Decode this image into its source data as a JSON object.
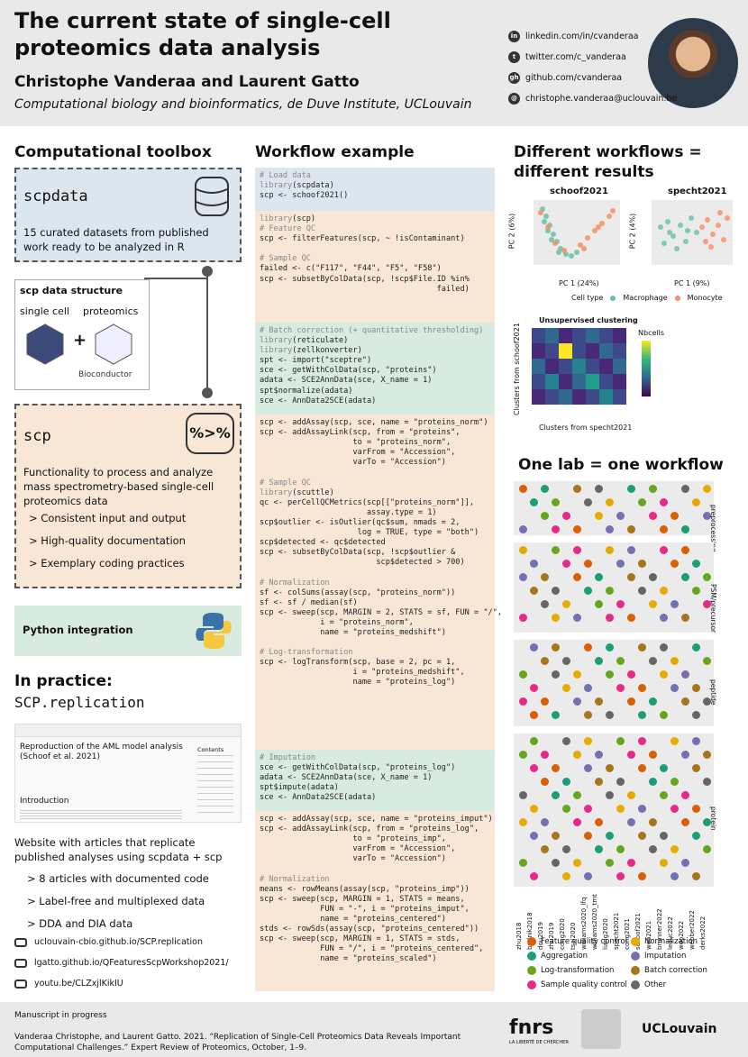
{
  "header": {
    "title": "The current state of single-cell proteomics data analysis",
    "authors": "Christophe Vanderaa and Laurent Gatto",
    "affiliation": "Computational biology and bioinformatics, de Duve Institute, UCLouvain",
    "contacts": [
      {
        "icon": "linkedin-icon",
        "glyph": "in",
        "text": "linkedin.com/in/cvanderaa"
      },
      {
        "icon": "twitter-icon",
        "glyph": "t",
        "text": "twitter.com/c_vanderaa"
      },
      {
        "icon": "github-icon",
        "glyph": "gh",
        "text": "github.com/cvanderaa"
      },
      {
        "icon": "email-icon",
        "glyph": "@",
        "text": "christophe.vanderaa@uclouvain.be"
      }
    ]
  },
  "toolbox": {
    "heading": "Computational toolbox",
    "scpdata_title": "scpdata",
    "scpdata_desc": "15 curated datasets from published work ready to be analyzed in R",
    "struct_title": "scp data structure",
    "struct_single": "single cell",
    "struct_prot": "proteomics",
    "plus": "+",
    "bioc": "Bioconductor",
    "scp_title": "scp",
    "scp_logo": "%>%",
    "scp_desc": "Functionality to process and analyze mass spectrometry-based single-cell proteomics data",
    "bullets": [
      "Consistent input and output",
      "High-quality documentation",
      "Exemplary coding practices"
    ],
    "python": "Python integration"
  },
  "practice": {
    "heading": "In practice:",
    "pkg": "SCP.replication",
    "shot_title": "Reproduction of the AML model analysis (Schoof et al. 2021)",
    "shot_intro": "Introduction",
    "shot_contents": "Contents",
    "desc": "Website with articles that replicate published analyses using scpdata + scp",
    "bullets": [
      "8 articles with documented code",
      "Label-free and multiplexed data",
      "DDA and DIA data"
    ],
    "links": [
      "uclouvain-cbio.github.io/SCP.replication",
      "lgatto.github.io/QFeaturesScpWorkshop2021/",
      "youtu.be/CLZxjlKikIU"
    ]
  },
  "workflow": {
    "heading": "Workflow example"
  },
  "results": {
    "heading": "Different workflows = different results",
    "pca_titles": [
      "schoof2021",
      "specht2021"
    ],
    "pca_x": [
      "PC 1 (24%)",
      "PC 1 (9%)"
    ],
    "pca_y": [
      "PC 2 (6%)",
      "PC 2 (4%)"
    ],
    "legend_label": "Cell type",
    "legend_items": [
      "Macrophage",
      "Monocyte"
    ],
    "heat_title": "Unsupervised clustering",
    "heat_legend": "Nbcells",
    "heat_x": "Clusters from specht2021",
    "heat_y": "Clusters from schoof2021"
  },
  "lab": {
    "heading": "One lab = one workflow",
    "facets": [
      "preprocessing",
      "PSM/precursor",
      "peptide",
      "protein"
    ],
    "datasets": [
      "zhu2018",
      "budnik2018",
      "dou2019",
      "zhu2019",
      "cong2020",
      "tsai2020",
      "williams2020_lfq",
      "williams2020_tmt",
      "liang2020",
      "specht2021",
      "cong2021",
      "schoof2021",
      "woo2021",
      "brunner2022",
      "leduc2022",
      "woo2022",
      "webber2022",
      "derks2022"
    ],
    "legend": [
      "Feature quality control",
      "Normalization",
      "Aggregation",
      "Imputation",
      "Log-transformation",
      "Batch correction",
      "Sample quality control",
      "Other"
    ],
    "legend_colors": [
      "#d95f02",
      "#e6ab02",
      "#1b9e77",
      "#7570b3",
      "#66a61e",
      "#a6761d",
      "#e7298a",
      "#666666"
    ]
  },
  "footer": {
    "status": "Manuscript in progress",
    "citation": "Vanderaa Christophe, and Laurent Gatto. 2021. “Replication of Single-Cell Proteomics Data Reveals Important Computational Challenges.” Expert Review of Proteomics, October, 1–9.",
    "logos": [
      "fnrs",
      "LA LIBERTÉ DE CHERCHER",
      "UCLouvain"
    ]
  }
}
